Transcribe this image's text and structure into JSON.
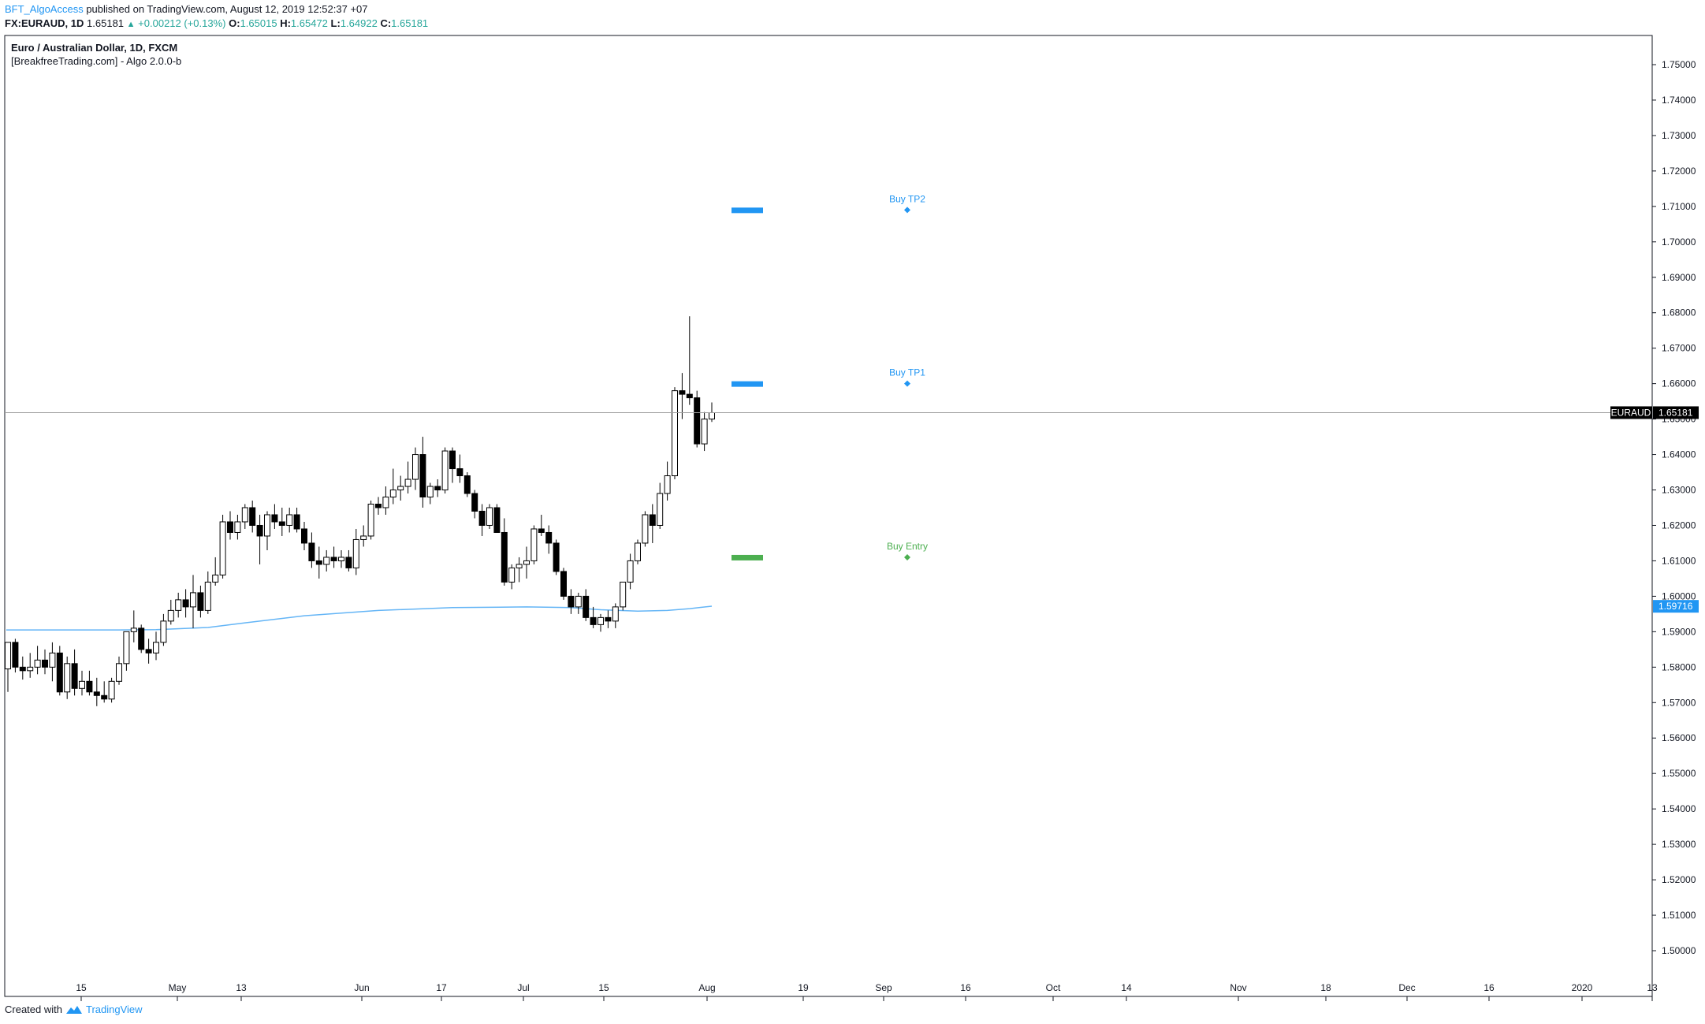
{
  "header": {
    "author": "BFT_AlgoAccess",
    "published_text": "published on TradingView.com, August 12, 2019 12:52:37 +07",
    "symbol": "FX:EURAUD, 1D",
    "last": "1.65181",
    "change": "+0.00212 (+0.13%)",
    "o_label": "O:",
    "o_value": "1.65015",
    "h_label": "H:",
    "h_value": "1.65472",
    "l_label": "L:",
    "l_value": "1.64922",
    "c_label": "C:",
    "c_value": "1.65181"
  },
  "footer": {
    "created_with": "Created with",
    "brand": "TradingView"
  },
  "colors": {
    "up_fill": "#ffffff",
    "down_fill": "#000000",
    "ma": "#64b5f6",
    "tp": "#2196f3",
    "entry": "#4caf50",
    "axis_text": "#131722"
  },
  "chart_data": {
    "type": "candlestick",
    "title": "Euro / Australian Dollar, 1D, FXCM",
    "subtitle": "[BreakfreeTrading.com] - Algo 2.0.0-b",
    "ylim": [
      1.49,
      1.76
    ],
    "yticks": [
      "1.75000",
      "1.74000",
      "1.73000",
      "1.72000",
      "1.71000",
      "1.70000",
      "1.69000",
      "1.68000",
      "1.67000",
      "1.66000",
      "1.65000",
      "1.64000",
      "1.63000",
      "1.62000",
      "1.61000",
      "1.60000",
      "1.59000",
      "1.58000",
      "1.57000",
      "1.56000",
      "1.55000",
      "1.54000",
      "1.53000",
      "1.52000",
      "1.51000",
      "1.50000"
    ],
    "xticks": [
      "15",
      "May",
      "13",
      "Jun",
      "17",
      "Jul",
      "15",
      "Aug",
      "19",
      "Sep",
      "16",
      "Oct",
      "14",
      "Nov",
      "18",
      "Dec",
      "16",
      "2020",
      "13"
    ],
    "candles": [
      [
        1.5795,
        1.587,
        1.573,
        1.587
      ],
      [
        1.587,
        1.588,
        1.5785,
        1.58
      ],
      [
        1.58,
        1.583,
        1.5765,
        1.579
      ],
      [
        1.579,
        1.584,
        1.577,
        1.58
      ],
      [
        1.58,
        1.586,
        1.578,
        1.582
      ],
      [
        1.582,
        1.585,
        1.578,
        1.58
      ],
      [
        1.58,
        1.587,
        1.576,
        1.584
      ],
      [
        1.584,
        1.586,
        1.572,
        1.573
      ],
      [
        1.573,
        1.583,
        1.571,
        1.581
      ],
      [
        1.581,
        1.585,
        1.572,
        1.574
      ],
      [
        1.574,
        1.579,
        1.572,
        1.576
      ],
      [
        1.576,
        1.579,
        1.572,
        1.573
      ],
      [
        1.573,
        1.577,
        1.569,
        1.572
      ],
      [
        1.572,
        1.576,
        1.57,
        1.571
      ],
      [
        1.571,
        1.577,
        1.57,
        1.576
      ],
      [
        1.576,
        1.583,
        1.575,
        1.581
      ],
      [
        1.581,
        1.59,
        1.579,
        1.59
      ],
      [
        1.59,
        1.596,
        1.587,
        1.591
      ],
      [
        1.591,
        1.592,
        1.584,
        1.585
      ],
      [
        1.585,
        1.588,
        1.581,
        1.584
      ],
      [
        1.584,
        1.59,
        1.582,
        1.587
      ],
      [
        1.587,
        1.595,
        1.586,
        1.593
      ],
      [
        1.593,
        1.599,
        1.592,
        1.596
      ],
      [
        1.596,
        1.601,
        1.594,
        1.599
      ],
      [
        1.599,
        1.602,
        1.594,
        1.597
      ],
      [
        1.597,
        1.606,
        1.591,
        1.601
      ],
      [
        1.601,
        1.603,
        1.594,
        1.596
      ],
      [
        1.596,
        1.607,
        1.595,
        1.604
      ],
      [
        1.604,
        1.611,
        1.603,
        1.606
      ],
      [
        1.606,
        1.623,
        1.605,
        1.621
      ],
      [
        1.621,
        1.624,
        1.616,
        1.618
      ],
      [
        1.618,
        1.623,
        1.616,
        1.621
      ],
      [
        1.621,
        1.626,
        1.619,
        1.625
      ],
      [
        1.625,
        1.627,
        1.618,
        1.62
      ],
      [
        1.62,
        1.623,
        1.609,
        1.617
      ],
      [
        1.617,
        1.624,
        1.613,
        1.623
      ],
      [
        1.623,
        1.626,
        1.619,
        1.621
      ],
      [
        1.621,
        1.625,
        1.617,
        1.62
      ],
      [
        1.62,
        1.625,
        1.618,
        1.623
      ],
      [
        1.623,
        1.625,
        1.618,
        1.619
      ],
      [
        1.619,
        1.621,
        1.613,
        1.615
      ],
      [
        1.615,
        1.618,
        1.608,
        1.61
      ],
      [
        1.61,
        1.614,
        1.605,
        1.609
      ],
      [
        1.609,
        1.613,
        1.607,
        1.611
      ],
      [
        1.611,
        1.614,
        1.608,
        1.61
      ],
      [
        1.61,
        1.613,
        1.608,
        1.611
      ],
      [
        1.611,
        1.613,
        1.607,
        1.608
      ],
      [
        1.608,
        1.619,
        1.606,
        1.616
      ],
      [
        1.616,
        1.62,
        1.614,
        1.617
      ],
      [
        1.617,
        1.627,
        1.616,
        1.626
      ],
      [
        1.626,
        1.628,
        1.623,
        1.625
      ],
      [
        1.625,
        1.631,
        1.623,
        1.628
      ],
      [
        1.628,
        1.636,
        1.626,
        1.63
      ],
      [
        1.63,
        1.634,
        1.627,
        1.631
      ],
      [
        1.631,
        1.638,
        1.629,
        1.633
      ],
      [
        1.633,
        1.642,
        1.63,
        1.64
      ],
      [
        1.64,
        1.645,
        1.625,
        1.628
      ],
      [
        1.628,
        1.632,
        1.626,
        1.631
      ],
      [
        1.631,
        1.633,
        1.628,
        1.63
      ],
      [
        1.63,
        1.642,
        1.629,
        1.641
      ],
      [
        1.641,
        1.642,
        1.632,
        1.636
      ],
      [
        1.636,
        1.64,
        1.632,
        1.634
      ],
      [
        1.634,
        1.635,
        1.628,
        1.629
      ],
      [
        1.629,
        1.63,
        1.622,
        1.624
      ],
      [
        1.624,
        1.626,
        1.617,
        1.62
      ],
      [
        1.62,
        1.626,
        1.619,
        1.625
      ],
      [
        1.625,
        1.626,
        1.618,
        1.618
      ],
      [
        1.618,
        1.622,
        1.603,
        1.604
      ],
      [
        1.604,
        1.609,
        1.602,
        1.608
      ],
      [
        1.608,
        1.611,
        1.604,
        1.609
      ],
      [
        1.609,
        1.614,
        1.605,
        1.61
      ],
      [
        1.61,
        1.62,
        1.609,
        1.619
      ],
      [
        1.619,
        1.623,
        1.617,
        1.618
      ],
      [
        1.618,
        1.62,
        1.612,
        1.615
      ],
      [
        1.615,
        1.616,
        1.606,
        1.607
      ],
      [
        1.607,
        1.608,
        1.599,
        1.6
      ],
      [
        1.6,
        1.602,
        1.595,
        1.597
      ],
      [
        1.597,
        1.601,
        1.595,
        1.6
      ],
      [
        1.6,
        1.602,
        1.593,
        1.594
      ],
      [
        1.594,
        1.597,
        1.591,
        1.592
      ],
      [
        1.592,
        1.595,
        1.59,
        1.594
      ],
      [
        1.594,
        1.596,
        1.591,
        1.593
      ],
      [
        1.593,
        1.598,
        1.591,
        1.597
      ],
      [
        1.597,
        1.604,
        1.596,
        1.604
      ],
      [
        1.604,
        1.612,
        1.602,
        1.61
      ],
      [
        1.61,
        1.616,
        1.609,
        1.615
      ],
      [
        1.615,
        1.624,
        1.614,
        1.623
      ],
      [
        1.623,
        1.626,
        1.615,
        1.62
      ],
      [
        1.62,
        1.632,
        1.619,
        1.629
      ],
      [
        1.629,
        1.638,
        1.627,
        1.634
      ],
      [
        1.634,
        1.659,
        1.633,
        1.658
      ],
      [
        1.658,
        1.663,
        1.65,
        1.657
      ],
      [
        1.657,
        1.679,
        1.654,
        1.656
      ],
      [
        1.656,
        1.658,
        1.642,
        1.643
      ],
      [
        1.643,
        1.652,
        1.641,
        1.65
      ],
      [
        1.65,
        1.6547,
        1.6492,
        1.6518
      ]
    ],
    "ma": {
      "name": "",
      "points": [
        [
          0,
          1.5905
        ],
        [
          15,
          1.5905
        ],
        [
          20,
          1.5906
        ],
        [
          27,
          1.5912
        ],
        [
          32,
          1.5925
        ],
        [
          40,
          1.5945
        ],
        [
          50,
          1.596
        ],
        [
          60,
          1.5968
        ],
        [
          70,
          1.597
        ],
        [
          76,
          1.5968
        ],
        [
          80,
          1.5962
        ],
        [
          85,
          1.5958
        ],
        [
          89,
          1.596
        ],
        [
          92,
          1.5965
        ],
        [
          95,
          1.5972
        ]
      ]
    },
    "levels": [
      {
        "label": "Buy TP2",
        "value": 1.709,
        "color": "#2196f3"
      },
      {
        "label": "Buy TP1",
        "value": 1.66,
        "color": "#2196f3"
      },
      {
        "label": "Buy Entry",
        "value": 1.611,
        "color": "#4caf50"
      }
    ],
    "last_price": {
      "symbol": "EURAUD",
      "value": 1.65181,
      "label": "1.65181"
    },
    "ma_price": {
      "value": 1.59716,
      "label": "1.59716"
    }
  }
}
